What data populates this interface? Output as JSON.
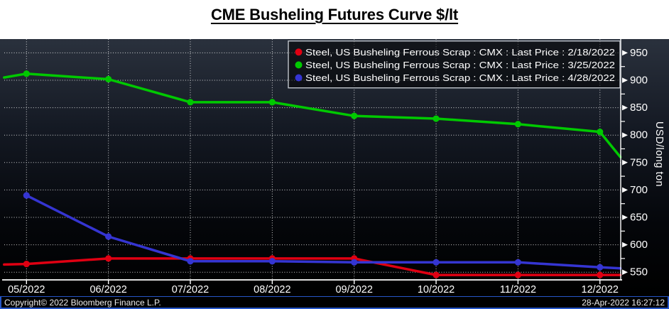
{
  "title": "CME Busheling Futures Curve $/lt",
  "footer": {
    "copyright": "Copyright© 2022 Bloomberg Finance L.P.",
    "timestamp": "28-Apr-2022 16:27:12"
  },
  "colors": {
    "footer_border": "#2656c8",
    "plot_bg_top": "#2a313d",
    "plot_bg_bottom": "#000000",
    "grid": "#ffffff",
    "axis": "#ffffff",
    "legend_border": "#c0c5cc",
    "legend_fill": "#000000",
    "series_red": "#e00012",
    "series_green": "#00c900",
    "series_blue": "#3535d2"
  },
  "chart_data": {
    "type": "line",
    "title": "CME Busheling Futures Curve $/lt",
    "xlabel": "",
    "ylabel": "USD/long ton",
    "categories": [
      "05/2022",
      "06/2022",
      "07/2022",
      "08/2022",
      "09/2022",
      "10/2022",
      "11/2022",
      "12/2022"
    ],
    "y_ticks": [
      550,
      600,
      650,
      700,
      750,
      800,
      850,
      900,
      950
    ],
    "y_minor_tick_step": 25,
    "ylim": [
      530,
      972
    ],
    "grid": true,
    "legend_position": "top-right",
    "series": [
      {
        "name": "Steel, US Busheling Ferrous Scrap : CMX : Last Price : 2/18/2022",
        "color_key": "series_red",
        "values": [
          565,
          575,
          575,
          575,
          575,
          545,
          545,
          545
        ],
        "edge_left_value": 564,
        "edge_right_value": 545
      },
      {
        "name": "Steel, US Busheling Ferrous Scrap : CMX : Last Price : 3/25/2022",
        "color_key": "series_green",
        "values": [
          912,
          902,
          860,
          860,
          835,
          830,
          820,
          806
        ],
        "edge_left_value": 905,
        "edge_right_value": 760
      },
      {
        "name": "Steel, US Busheling Ferrous Scrap : CMX : Last Price : 4/28/2022",
        "color_key": "series_blue",
        "values": [
          690,
          615,
          570,
          570,
          568,
          568,
          568,
          559
        ],
        "edge_left_value": null,
        "edge_right_value": 557
      }
    ]
  }
}
